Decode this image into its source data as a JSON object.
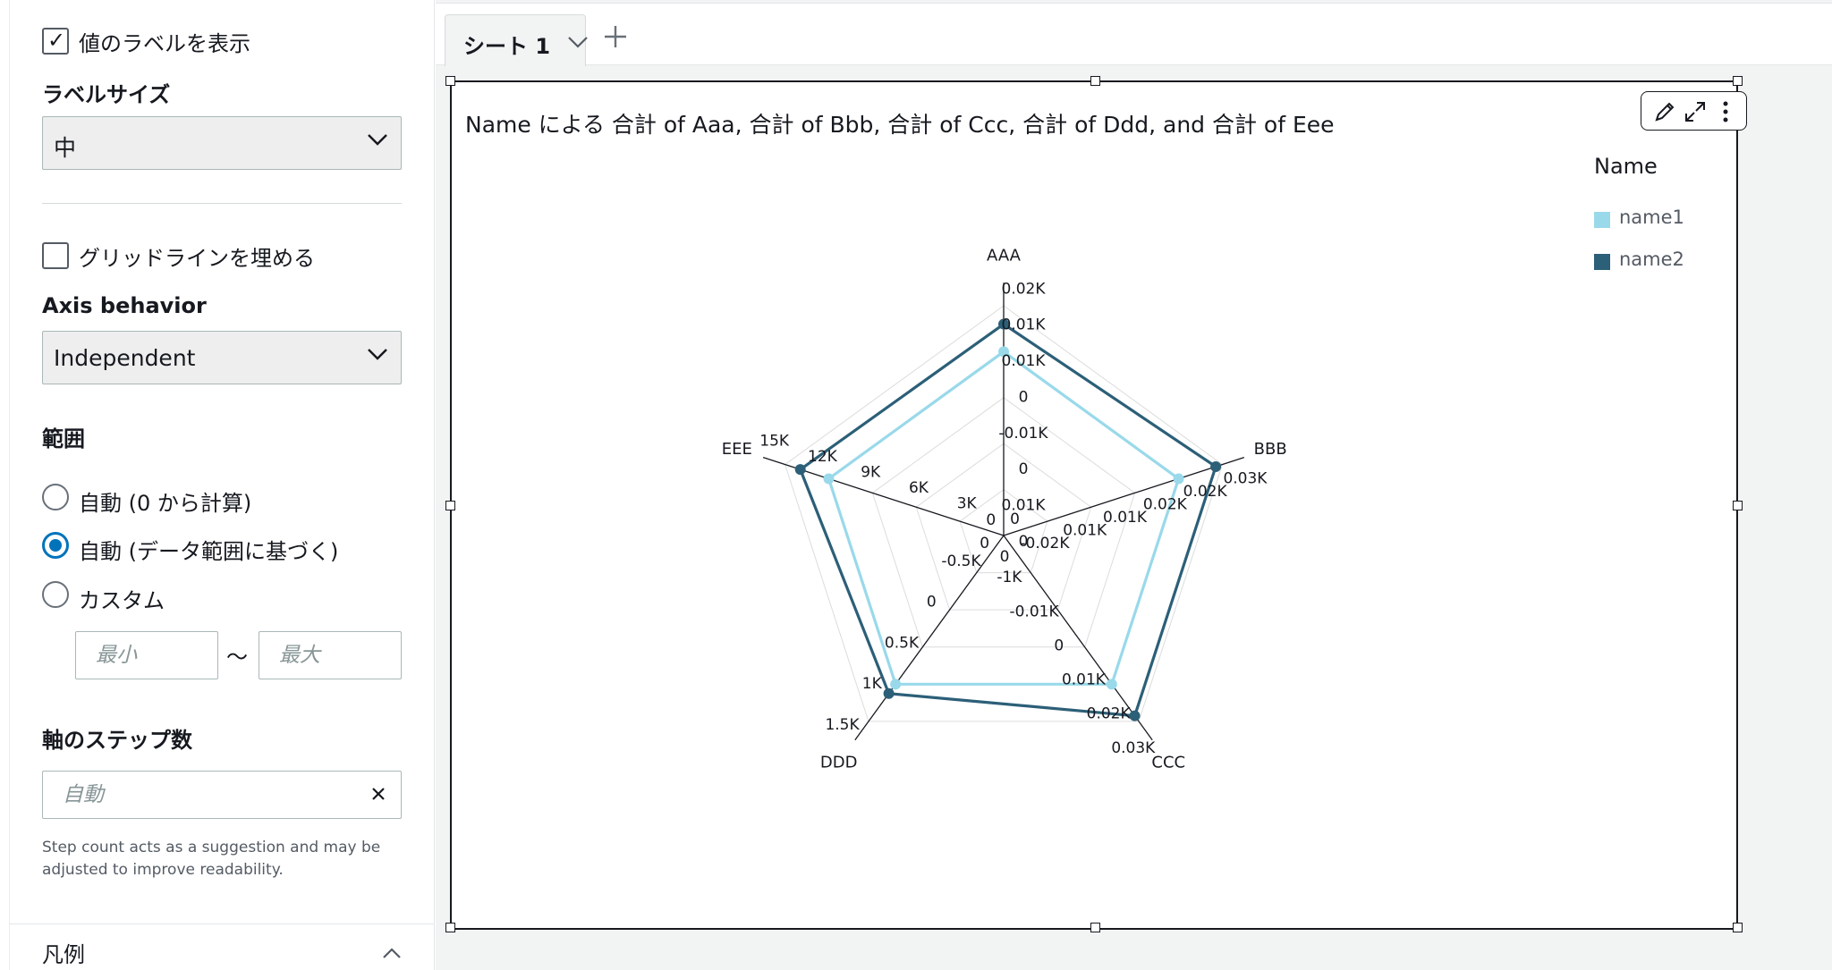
{
  "panel": {
    "show_value_labels": "値のラベルを表示",
    "label_size_header": "ラベルサイズ",
    "label_size_value": "中",
    "fill_gridlines": "グリッドラインを埋める",
    "axis_behavior_header": "Axis behavior",
    "axis_behavior_value": "Independent",
    "range_header": "範囲",
    "range_options": [
      "自動 (0 から計算)",
      "自動 (データ範囲に基づく)",
      "カスタム"
    ],
    "range_min_placeholder": "最小",
    "range_max_placeholder": "最大",
    "range_separator": "〜",
    "step_header": "軸のステップ数",
    "step_placeholder": "自動",
    "step_help": "Step count acts as a suggestion and may be adjusted to improve readability.",
    "legend_section": "凡例"
  },
  "tabs": [
    {
      "label": "シート 1"
    }
  ],
  "visual": {
    "title": "Name による 合計 of Aaa, 合計 of Bbb, 合計 of Ccc, 合計 of Ddd, and 合計 of Eee",
    "legend_title": "Name"
  },
  "chart_data": {
    "type": "radar",
    "axes": [
      "AAA",
      "BBB",
      "CCC",
      "DDD",
      "EEE"
    ],
    "axis_tick_labels": {
      "AAA": [
        "0",
        "0.01K",
        "0",
        "-0.01K",
        "0",
        "0.01K",
        "0.01K",
        "0.02K"
      ],
      "BBB": [
        "0",
        "-0.02K",
        "0.01K",
        "0.01K",
        "0.02K",
        "0.02K",
        "0.03K"
      ],
      "CCC": [
        "0",
        "-1K",
        "-0.01K",
        "0",
        "0.01K",
        "0.02K",
        "0.03K"
      ],
      "DDD": [
        "0",
        "-0.5K",
        "0",
        "0.5K",
        "1K",
        "1.5K"
      ],
      "EEE": [
        "0",
        "3K",
        "6K",
        "9K",
        "12K",
        "15K"
      ]
    },
    "axis_mode": "independent",
    "grid_rings": 5,
    "series": [
      {
        "name": "name1",
        "color": "#99d9ea",
        "values": [
          0.8,
          0.8,
          0.8,
          0.8,
          0.8
        ]
      },
      {
        "name": "name2",
        "color": "#2c5f78",
        "values": [
          0.92,
          0.97,
          0.97,
          0.85,
          0.93
        ]
      }
    ],
    "legend_position": "top-right"
  }
}
